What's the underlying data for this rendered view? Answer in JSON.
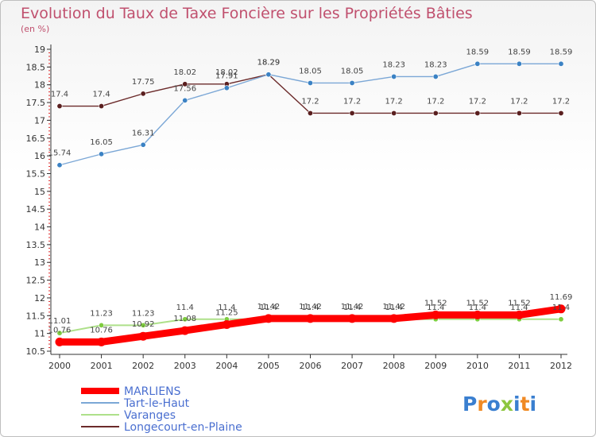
{
  "header": {
    "title": "Evolution du Taux de Taxe Foncière sur les Propriétés Bâties",
    "unit": "(en %)"
  },
  "logo": {
    "text": "Proxiti",
    "colors": [
      "#3a7fd0",
      "#f08a24",
      "#3a7fd0",
      "#8dc63f",
      "#3a7fd0",
      "#f08a24",
      "#3a7fd0"
    ]
  },
  "chart_data": {
    "type": "line",
    "x": [
      "2000",
      "2001",
      "2002",
      "2003",
      "2004",
      "2005",
      "2006",
      "2007",
      "2008",
      "2009",
      "2010",
      "2011",
      "2012"
    ],
    "ylim": [
      10.5,
      19
    ],
    "yticks": [
      10.5,
      11,
      11.5,
      12,
      12.5,
      13,
      13.5,
      14,
      14.5,
      15,
      15.5,
      16,
      16.5,
      17,
      17.5,
      18,
      18.5,
      19
    ],
    "grid": false,
    "legend_position": "bottom-left",
    "series": [
      {
        "name": "Longecourt-en-Plaine",
        "color": "#6b2a2a",
        "marker": "#5a1f1f",
        "width": 1.4,
        "values": [
          17.4,
          17.4,
          17.75,
          18.02,
          18.02,
          18.29,
          17.2,
          17.2,
          17.2,
          17.2,
          17.2,
          17.2,
          17.2
        ],
        "labels": [
          "17.4",
          "17.4",
          "17.75",
          "18.02",
          "18.02",
          "18.29",
          "17.2",
          "17.2",
          "17.2",
          "17.2",
          "17.2",
          "17.2",
          "17.2"
        ]
      },
      {
        "name": "Tart-le-Haut",
        "color": "#7ba7d6",
        "marker": "#3b82c4",
        "width": 1.4,
        "values": [
          15.74,
          16.05,
          16.31,
          17.56,
          17.91,
          18.29,
          18.05,
          18.05,
          18.23,
          18.23,
          18.59,
          18.59,
          18.59
        ],
        "labels": [
          "15.74",
          "16.05",
          "16.31",
          "17.56",
          "17.91",
          "18.29",
          "18.05",
          "18.05",
          "18.23",
          "18.23",
          "18.59",
          "18.59",
          "18.59"
        ]
      },
      {
        "name": "Varanges",
        "color": "#aee08a",
        "marker": "#7fcc3f",
        "width": 2,
        "values": [
          11.01,
          11.23,
          11.23,
          11.4,
          11.4,
          11.4,
          11.4,
          11.4,
          11.4,
          11.4,
          11.4,
          11.4,
          11.4
        ],
        "labels": [
          "11.01",
          "11.23",
          "11.23",
          "11.4",
          "11.4",
          "11.4",
          "11.4",
          "11.4",
          "11.4",
          "11.4",
          "11.4",
          "11.4",
          "11.4"
        ]
      },
      {
        "name": "MARLIENS",
        "color": "#ff0000",
        "marker": "#ff0000",
        "width": 9,
        "values": [
          10.76,
          10.76,
          10.92,
          11.08,
          11.25,
          11.42,
          11.42,
          11.42,
          11.42,
          11.52,
          11.52,
          11.52,
          11.69
        ],
        "labels": [
          "10.76",
          "10.76",
          "10.92",
          "11.08",
          "11.25",
          "11.42",
          "11.42",
          "11.42",
          "11.42",
          "11.52",
          "11.52",
          "11.52",
          "11.69"
        ]
      }
    ],
    "legend": [
      "MARLIENS",
      "Tart-le-Haut",
      "Varanges",
      "Longecourt-en-Plaine"
    ]
  }
}
